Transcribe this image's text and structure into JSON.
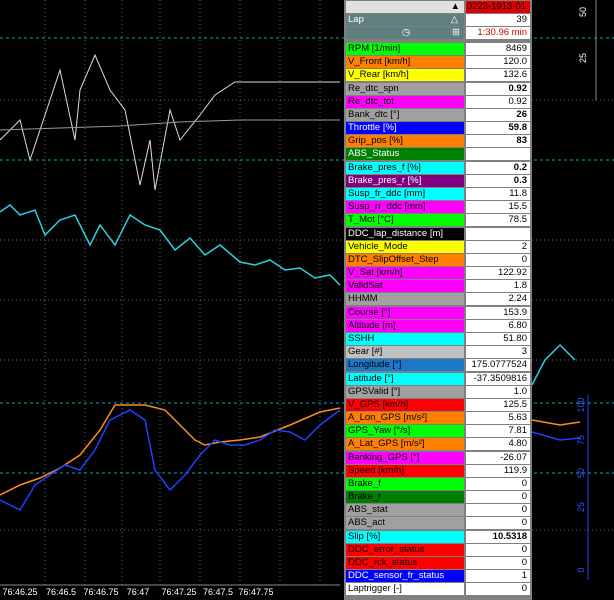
{
  "header": {
    "session": "0223-1913-01",
    "lap_label": "Lap",
    "lap": "39",
    "time": "1:30.96 min"
  },
  "rows": [
    {
      "name": "RPM [1/min]",
      "color": "#00ff00",
      "value": "8469"
    },
    {
      "name": "V_Front [km/h]",
      "color": "#ff8000",
      "value": "120.0"
    },
    {
      "name": "V_Rear [km/h]",
      "color": "#ffff00",
      "value": "132.6"
    },
    {
      "name": "Re_dtc_spn",
      "color": "#a0a0a0",
      "value": "0.92",
      "bold": true
    },
    {
      "name": "Re_dtc_tot",
      "color": "#ff00ff",
      "value": "0.92"
    },
    {
      "name": "Bank_dtc [°]",
      "color": "#a0a0a0",
      "value": "26",
      "bold": true
    },
    {
      "name": "Throttle [%]",
      "color": "#0000ff",
      "text": "#ffffff",
      "value": "59.8",
      "bold": true
    },
    {
      "name": "Grip_pos [%]",
      "color": "#ff8000",
      "value": "83",
      "bold": true
    },
    {
      "name": "ABS_Status",
      "color": "#008000",
      "text": "#ffffff"
    },
    {
      "name": "Brake_pres_f [%]",
      "color": "#00ffff",
      "value": "0.2",
      "bold": true
    },
    {
      "name": "Brake_pres_r [%]",
      "color": "#800080",
      "text": "#ffffff",
      "value": "0.3",
      "bold": true
    },
    {
      "name": "Susp_fr_ddc [mm]",
      "color": "#00ffff",
      "value": "11.8"
    },
    {
      "name": "Susp_rr_ddc [mm]",
      "color": "#ff00ff",
      "value": "15.5"
    },
    {
      "name": "T_Mot [°C]",
      "color": "#00ff00",
      "value": "78.5"
    },
    {
      "name": "DDC_lap_distance [m]",
      "color": "#000000",
      "text": "#ffffff"
    },
    {
      "name": "Vehicle_Mode",
      "color": "#ffff00",
      "value": "2"
    },
    {
      "name": "DTC_SlipOffset_Step",
      "color": "#ff8000",
      "value": "0"
    },
    {
      "name": "V_Sat [km/h]",
      "color": "#ff00ff",
      "value": "122.92"
    },
    {
      "name": "ValidSat",
      "color": "#ff00ff",
      "value": "1.8"
    },
    {
      "name": "HHMM",
      "color": "#a0a0a0",
      "value": "2.24"
    },
    {
      "name": "Course [°]",
      "color": "#ff00ff",
      "value": "153.9"
    },
    {
      "name": "Altitude [m]",
      "color": "#ff00ff",
      "value": "6.80"
    },
    {
      "name": "SSHH",
      "color": "#00ffff",
      "value": "51.80"
    },
    {
      "name": "Gear [#]",
      "color": "#c0c0c0",
      "value": "3"
    },
    {
      "name": "Longitude [°]",
      "color": "#1e78c8",
      "value": "175.0777524"
    },
    {
      "name": "Latitude [°]",
      "color": "#00ffff",
      "value": "-37.3509816"
    },
    {
      "name": "GPSValid [°]",
      "color": "#a0a0a0",
      "value": "1.0"
    },
    {
      "name": "V_GPS [km/h]",
      "color": "#ff0000",
      "value": "125.5"
    },
    {
      "name": "A_Lon_GPS [m/s²]",
      "color": "#ff8000",
      "value": "5.63"
    },
    {
      "name": "GPS_Yaw [°/s]",
      "color": "#00ff00",
      "value": "7.81"
    },
    {
      "name": "A_Lat_GPS [m/s²]",
      "color": "#ff8000",
      "value": "4.80"
    },
    {
      "name": "Banking_GPS [°]",
      "color": "#ff00ff",
      "value": "-26.07"
    },
    {
      "name": "Speed [km/h]",
      "color": "#ff0000",
      "value": "119.9"
    },
    {
      "name": "Brake_f",
      "color": "#00ff00",
      "value": "0"
    },
    {
      "name": "Brake_r",
      "color": "#008000",
      "value": "0"
    },
    {
      "name": "ABS_stat",
      "color": "#a0a0a0",
      "value": "0"
    },
    {
      "name": "ABS_act",
      "color": "#a0a0a0",
      "value": "0"
    },
    {
      "name": "Slip [%]",
      "color": "#00ffff",
      "value": "10.5318",
      "bold": true
    },
    {
      "name": "DDC_error_status",
      "color": "#ff0000",
      "value": "0"
    },
    {
      "name": "DDC_rck_status",
      "color": "#ff0000",
      "value": "0"
    },
    {
      "name": "DDC_sensor_fr_status",
      "color": "#0000ff",
      "text": "#ffffff",
      "value": "1"
    },
    {
      "name": "Laptrigger [-]",
      "color": "#ffffff",
      "value": "0"
    }
  ],
  "time_axis": [
    "76:46.25",
    "76:46.5",
    "76:46.75",
    "76:47",
    "76:47.25",
    "76:47.5",
    "76:47.75"
  ],
  "right_axis_top": [
    "50",
    "25"
  ],
  "right_axis_bottom": [
    "100",
    "75",
    "50",
    "25",
    "0"
  ]
}
